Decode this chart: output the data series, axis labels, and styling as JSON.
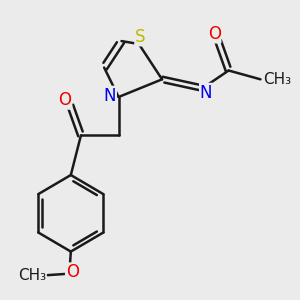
{
  "bg_color": "#ebebeb",
  "bond_color": "#1a1a1a",
  "N_color": "#0000ee",
  "O_color": "#ee0000",
  "S_color": "#bbbb00",
  "line_width": 1.8,
  "font_size": 11.5,
  "xlim": [
    0,
    10
  ],
  "ylim": [
    0,
    10
  ]
}
